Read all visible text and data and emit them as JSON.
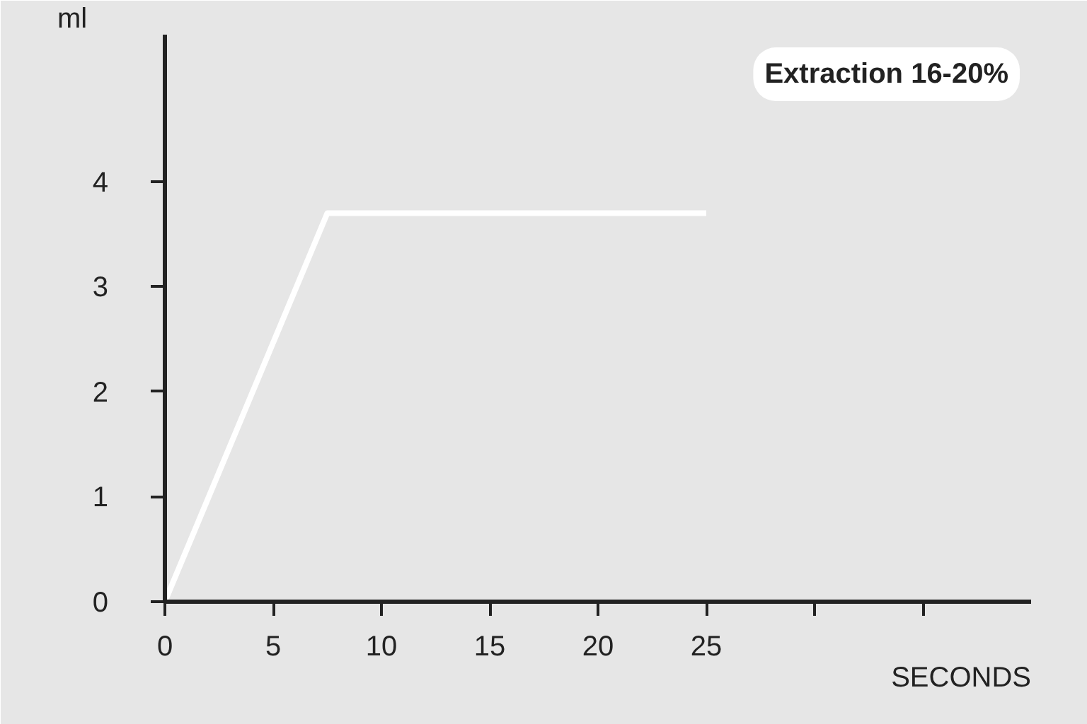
{
  "chart_data": {
    "type": "line",
    "xlabel": "SECONDS",
    "ylabel": "ml",
    "annotations": [
      "Extraction 16-20%"
    ],
    "x": [
      0,
      7.5,
      25
    ],
    "series": [
      {
        "color": "#ffffff",
        "values": [
          0,
          3.7,
          3.7
        ]
      }
    ],
    "xlim": [
      0,
      40
    ],
    "ylim": [
      0,
      5.4
    ],
    "xticks": [
      0,
      5,
      10,
      15,
      20,
      25,
      {
        "value": 30,
        "label": null
      },
      {
        "value": 35,
        "label": null
      }
    ],
    "yticks": [
      0,
      1,
      2,
      3,
      4
    ],
    "grid": false,
    "marker": "none",
    "line_style": "solid"
  }
}
